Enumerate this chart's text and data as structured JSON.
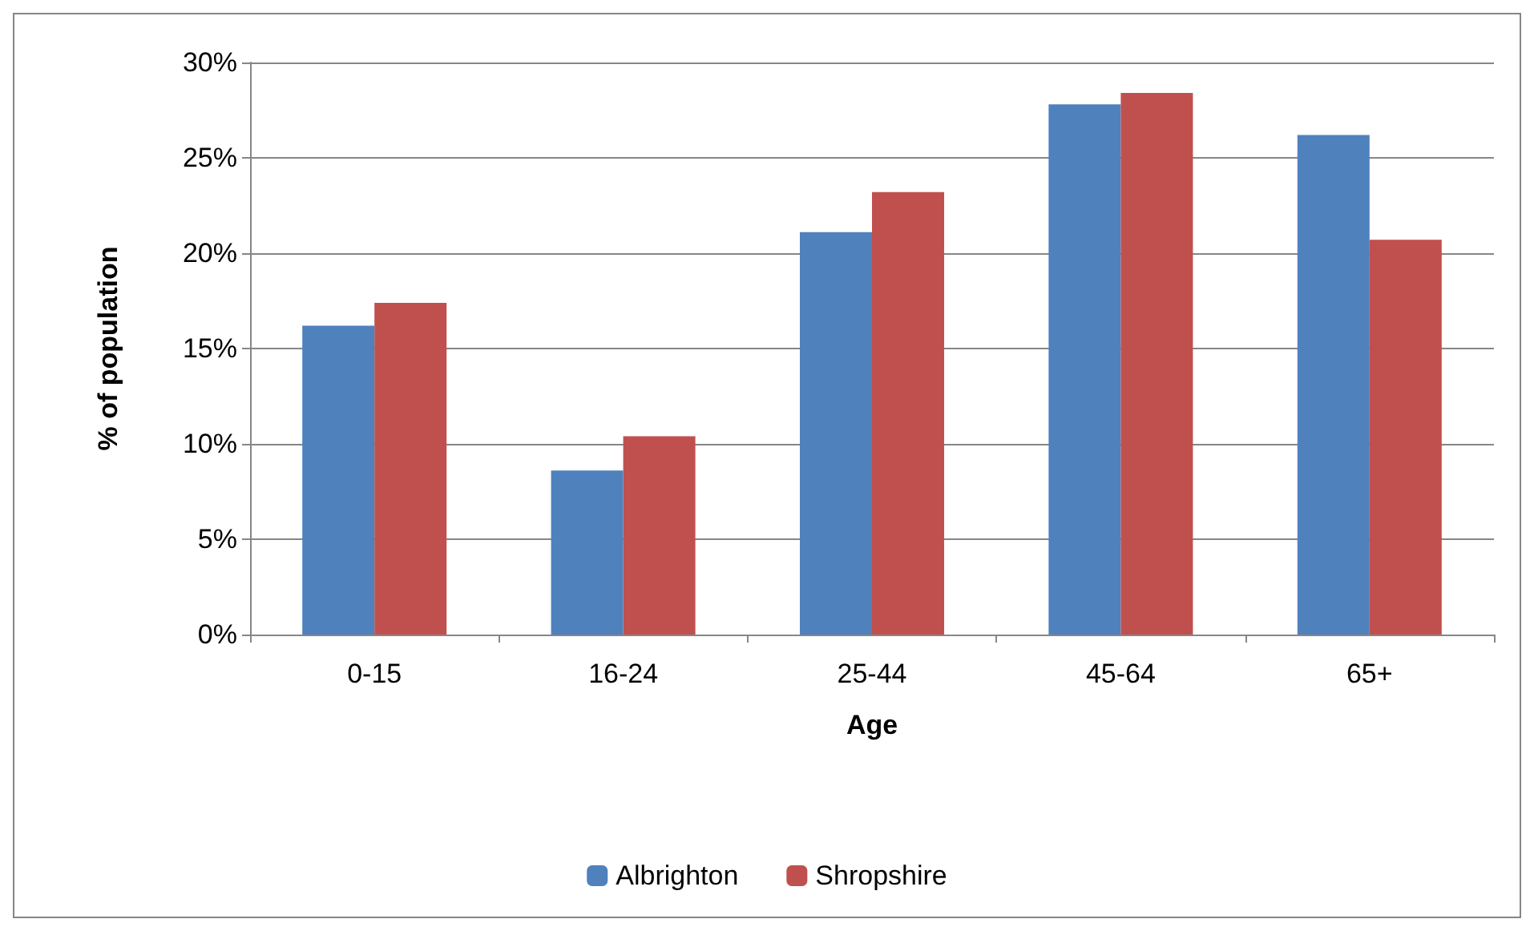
{
  "chart_data": {
    "type": "bar",
    "xlabel": "Age",
    "ylabel": "% of population",
    "categories": [
      "0-15",
      "16-24",
      "25-44",
      "45-64",
      "65+"
    ],
    "series": [
      {
        "name": "Albrighton",
        "color": "#4f81bd",
        "values": [
          16.2,
          8.6,
          21.1,
          27.8,
          26.2
        ]
      },
      {
        "name": "Shropshire",
        "color": "#c0504d",
        "values": [
          17.4,
          10.4,
          23.2,
          28.4,
          20.7
        ]
      }
    ],
    "ylim": [
      0,
      30
    ],
    "yticks": [
      {
        "value": 0,
        "label": "0%"
      },
      {
        "value": 5,
        "label": "5%"
      },
      {
        "value": 10,
        "label": "10%"
      },
      {
        "value": 15,
        "label": "15%"
      },
      {
        "value": 20,
        "label": "20%"
      },
      {
        "value": 25,
        "label": "25%"
      },
      {
        "value": 30,
        "label": "30%"
      }
    ],
    "grid": "y",
    "legend": "bottom"
  }
}
